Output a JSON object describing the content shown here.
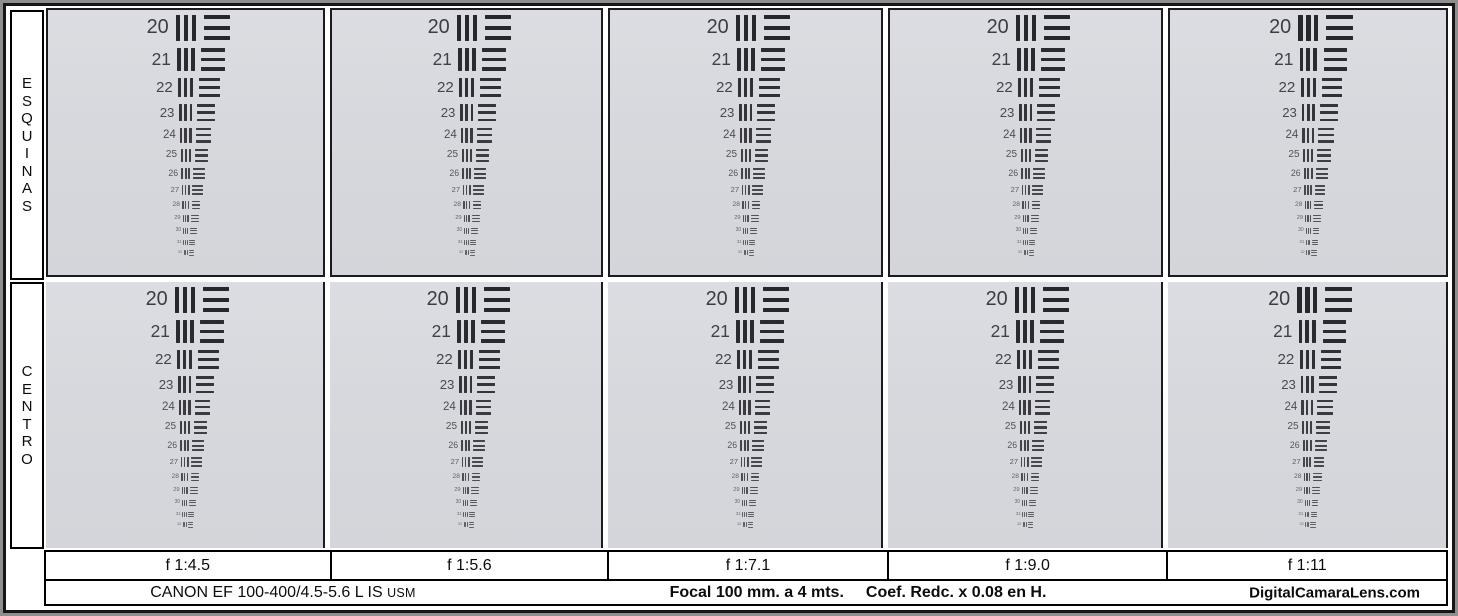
{
  "rows": [
    {
      "id": "esquinas",
      "label": "ESQUINAS"
    },
    {
      "id": "centro",
      "label": "CENTRO"
    }
  ],
  "columns": [
    {
      "aperture": "f 1:4.5"
    },
    {
      "aperture": "f 1:5.6"
    },
    {
      "aperture": "f 1:7.1"
    },
    {
      "aperture": "f 1:9.0"
    },
    {
      "aperture": "f 1:11"
    }
  ],
  "test_pattern": {
    "numbers": [
      20,
      21,
      22,
      23,
      24,
      25,
      26,
      27,
      28,
      29,
      30,
      31,
      32
    ],
    "vertical_bars_per_group": 3,
    "horizontal_bars_per_group": 3
  },
  "footer": {
    "lens": "CANON EF 100-400/4.5-5.6 L IS",
    "lens_mount_suffix": "USM",
    "focal_info": "Focal 100 mm. a 4 mts.",
    "coef_info": "Coef. Redc. x 0.08 en H.",
    "site": "DigitalCamaraLens.com"
  },
  "colors": {
    "photo_background": "#d6d8dd",
    "bar": "#26262d",
    "number": "#3c3c44",
    "frame": "#161616",
    "outer_border": "#8f8f8f",
    "paper": "#ffffff"
  }
}
